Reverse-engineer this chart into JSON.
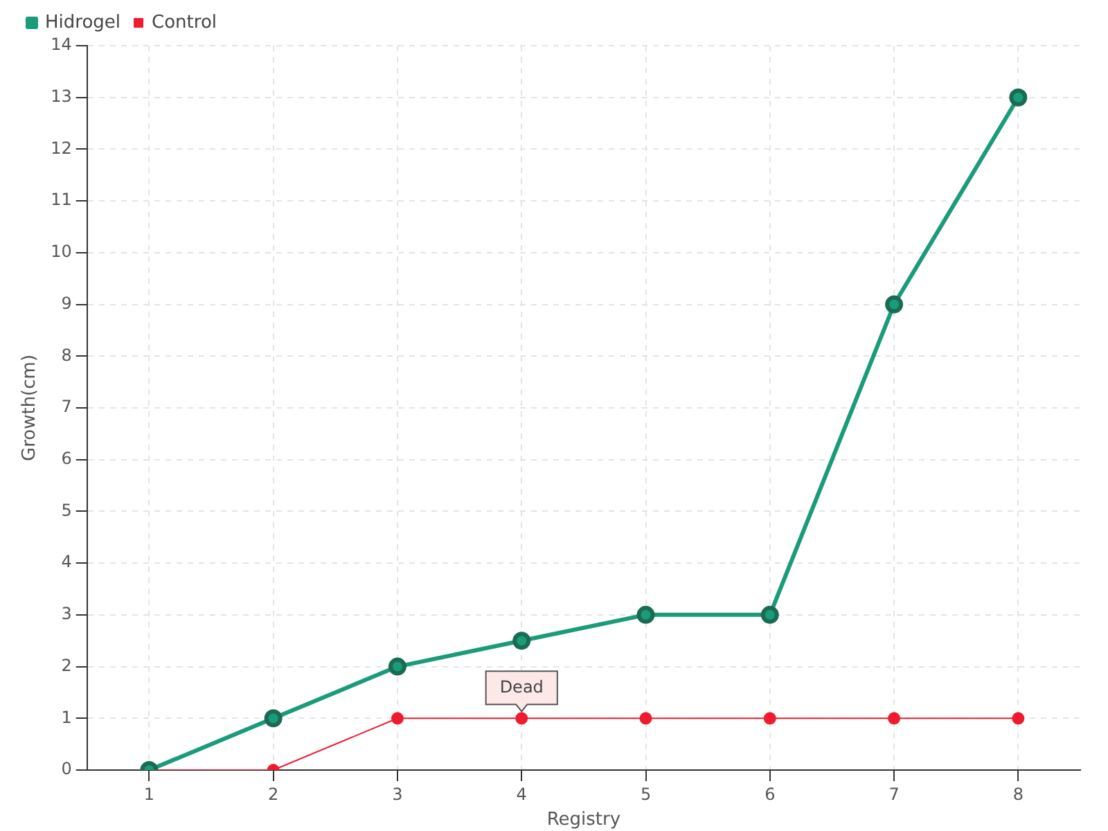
{
  "chart_data": {
    "type": "line",
    "xlabel": "Registry",
    "ylabel": "Growth(cm)",
    "categories": [
      "1",
      "2",
      "3",
      "4",
      "5",
      "6",
      "7",
      "8"
    ],
    "series": [
      {
        "name": "Hidrogel",
        "color": "#1a9b7a",
        "values": [
          0,
          1,
          2,
          2.5,
          3,
          3,
          9,
          13
        ]
      },
      {
        "name": "Control",
        "color": "#ee1c2e",
        "values": [
          0,
          0,
          1,
          1,
          1,
          1,
          1,
          1
        ]
      }
    ],
    "ylim": [
      0,
      14
    ],
    "yticks": [
      0,
      1,
      2,
      3,
      4,
      5,
      6,
      7,
      8,
      9,
      10,
      11,
      12,
      13,
      14
    ],
    "grid": true,
    "legend": "top left",
    "marker": "circle",
    "line_style": "solid",
    "annotations": [
      {
        "text": "Dead",
        "x": "4",
        "y": 1
      }
    ]
  }
}
